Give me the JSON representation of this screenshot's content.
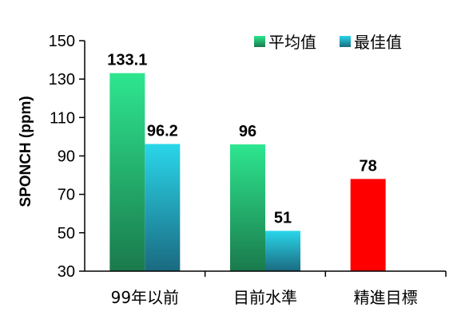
{
  "chart_data": {
    "type": "bar",
    "categories": [
      "99年以前",
      "目前水準",
      "精進目標"
    ],
    "series": [
      {
        "name": "平均值",
        "values": [
          133.1,
          96,
          null
        ],
        "color": "#2ee68f",
        "color_dark": "#1a7a4c"
      },
      {
        "name": "最佳值",
        "values": [
          96.2,
          51,
          null
        ],
        "color": "#2ad6ea",
        "color_dark": "#1a6a80"
      }
    ],
    "extra_bars": [
      {
        "category_index": 2,
        "value": 78,
        "color": "#ff0000",
        "label": "78"
      }
    ],
    "data_labels": [
      [
        "133.1",
        "96",
        ""
      ],
      [
        "96.2",
        "51",
        ""
      ]
    ],
    "title": "",
    "xlabel": "",
    "ylabel": "SPONCH (ppm)",
    "ylim": [
      30,
      150
    ],
    "yticks": [
      30,
      50,
      70,
      90,
      110,
      130,
      150
    ],
    "legend_position": "top-right",
    "grid": false
  }
}
